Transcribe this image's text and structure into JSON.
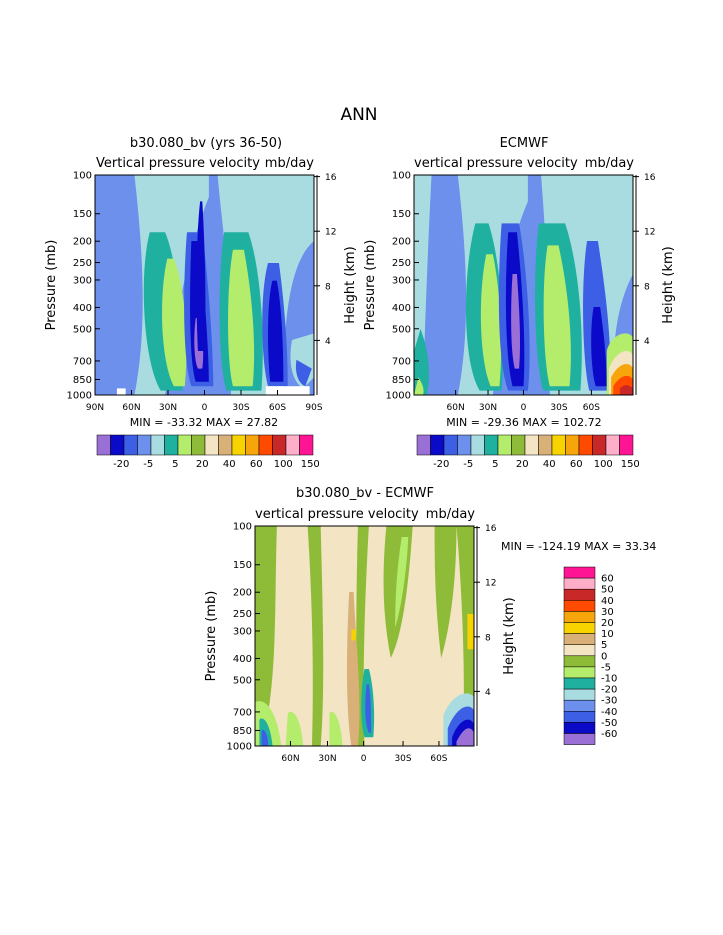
{
  "main_title": "ANN",
  "colors": {
    "-60": "#9a6fd6",
    "-50": "#0a0ac8",
    "-40": "#3d5fe6",
    "-30": "#6c90ec",
    "-20": "#a8dce0",
    "-10": "#1fb0a0",
    "-5": "#b4ec6c",
    "0": "#8fbc38",
    "5": "#f3e4c3",
    "10": "#d8b078",
    "20": "#f7d400",
    "30": "#f6a50a",
    "40": "#ff4a00",
    "50": "#c82828",
    "60": "#ffaec8",
    "70": "#ff1494"
  },
  "chart_data": [
    {
      "type": "heatmap",
      "title": "b30.080_bv (yrs 36-50)",
      "variable": "Vertical pressure velocity",
      "units": "mb/day",
      "ylabel": "Pressure (mb)",
      "ylabel_right": "Height (km)",
      "y_ticks": [
        "100",
        "150",
        "200",
        "250",
        "300",
        "400",
        "500",
        "700",
        "850",
        "1000"
      ],
      "y_right_ticks": [
        "16",
        "12",
        "8",
        "4"
      ],
      "x_ticks": [
        "90N",
        "60N",
        "30N",
        "0",
        "30S",
        "60S",
        "90S"
      ],
      "min": "-33.32",
      "max": "27.82",
      "stats": "MIN = -33.32   MAX =  27.82",
      "colorbar_labels": [
        "-20",
        "-5",
        "5",
        "20",
        "40",
        "60",
        "100",
        "150"
      ]
    },
    {
      "type": "heatmap",
      "title": "ECMWF",
      "variable": "vertical pressure velocity",
      "units": "mb/day",
      "ylabel": "Pressure (mb)",
      "ylabel_right": "Height (km)",
      "y_ticks": [
        "100",
        "150",
        "200",
        "250",
        "300",
        "400",
        "500",
        "700",
        "850",
        "1000"
      ],
      "y_right_ticks": [
        "16",
        "12",
        "8",
        "4"
      ],
      "x_ticks": [
        "60N",
        "30N",
        "0",
        "30S",
        "60S"
      ],
      "min": "-29.36",
      "max": "102.72",
      "stats": "MIN = -29.36   MAX = 102.72",
      "colorbar_labels": [
        "-20",
        "-5",
        "5",
        "20",
        "40",
        "60",
        "100",
        "150"
      ]
    },
    {
      "type": "heatmap",
      "title": "b30.080_bv - ECMWF",
      "variable": "vertical pressure velocity",
      "units": "mb/day",
      "ylabel": "Pressure (mb)",
      "ylabel_right": "Height (km)",
      "y_ticks": [
        "100",
        "150",
        "200",
        "250",
        "300",
        "400",
        "500",
        "700",
        "850",
        "1000"
      ],
      "y_right_ticks": [
        "16",
        "12",
        "8",
        "4"
      ],
      "x_ticks": [
        "60N",
        "30N",
        "0",
        "30S",
        "60S"
      ],
      "min": "-124.19",
      "max": "33.34",
      "stats": "MIN = -124.19   MAX =  33.34",
      "colorbar_labels": [
        "60",
        "50",
        "40",
        "30",
        "20",
        "10",
        "5",
        "0",
        "-5",
        "-10",
        "-20",
        "-30",
        "-40",
        "-50",
        "-60"
      ]
    }
  ]
}
